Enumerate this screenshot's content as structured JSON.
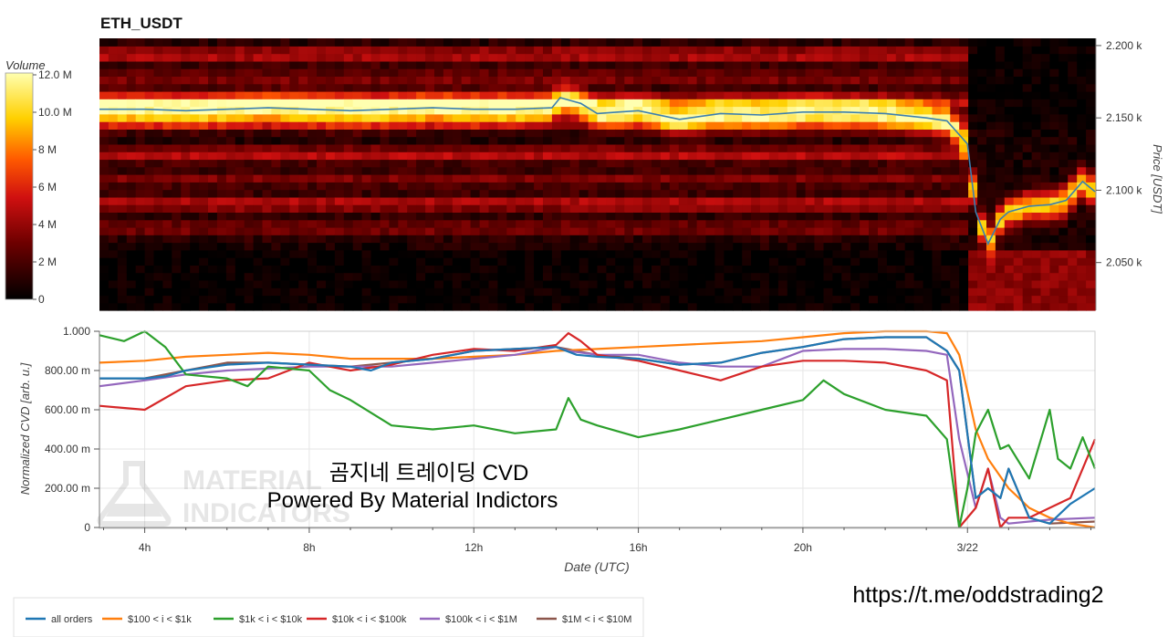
{
  "title": "ETH_USDT",
  "colorbar": {
    "label": "Volume",
    "ticks": [
      "12.0 M",
      "10.0 M",
      "8 M",
      "6 M",
      "4 M",
      "2 M",
      "0"
    ],
    "range": [
      0,
      12
    ]
  },
  "watermark": {
    "line1": "곰지네 트레이딩 CVD",
    "line2": "Powered By Material Indictors",
    "logo_text": [
      "MATERIAL",
      "INDICATORS"
    ]
  },
  "link_text": "https://t.me/oddstrading2",
  "colors": {
    "all_orders": "#1f77b4",
    "s100_1k": "#ff7f0e",
    "s1k_10k": "#2ca02c",
    "s10k_100k": "#d62728",
    "s100k_1m": "#9467bd",
    "s1m_10m": "#8c564b",
    "price_line": "#3b7fb0"
  },
  "chart_data": [
    {
      "type": "heatmap",
      "title": "ETH_USDT",
      "ylabel": "Price [USDT]",
      "yticks": [
        "2.200 k",
        "2.150 k",
        "2.100 k",
        "2.050 k"
      ],
      "yticks_values": [
        2200,
        2150,
        2100,
        2050
      ],
      "ylim": [
        2017,
        2205
      ],
      "xlim_hours": [
        2.9,
        27.1
      ],
      "price_series": {
        "name": "Price",
        "x_hours": [
          2.9,
          4,
          5,
          6,
          7,
          8,
          9,
          10,
          11,
          12,
          13,
          13.9,
          14.1,
          14.6,
          15,
          15.5,
          16,
          17,
          18,
          19,
          20,
          21,
          22,
          23,
          23.5,
          24.0,
          24.2,
          24.5,
          24.8,
          25,
          25.5,
          26,
          26.4,
          26.8,
          27.1
        ],
        "values": [
          2156,
          2156,
          2155,
          2156,
          2157,
          2156,
          2155,
          2156,
          2157,
          2156,
          2156,
          2157,
          2164,
          2160,
          2153,
          2154,
          2155,
          2149,
          2153,
          2152,
          2154,
          2154,
          2153,
          2150,
          2148,
          2132,
          2085,
          2063,
          2080,
          2085,
          2089,
          2090,
          2093,
          2106,
          2099
        ]
      }
    },
    {
      "type": "line",
      "title": "곰지네 트레이딩 CVD",
      "xlabel": "Date (UTC)",
      "ylabel": "Normalized CVD [arb. u.]",
      "ylim": [
        0,
        1.0
      ],
      "yticks": [
        "1.000",
        "800.00 m",
        "600.00 m",
        "400.00 m",
        "200.00 m",
        "0"
      ],
      "yticks_values": [
        1.0,
        0.8,
        0.6,
        0.4,
        0.2,
        0
      ],
      "xlim_hours": [
        2.9,
        27.1
      ],
      "xticks": [
        "4h",
        "8h",
        "12h",
        "16h",
        "20h",
        "3/22"
      ],
      "xticks_hours": [
        4,
        8,
        12,
        16,
        20,
        24
      ],
      "series": [
        {
          "key": "all_orders",
          "name": "all orders",
          "x_hours": [
            2.9,
            4,
            4.5,
            5,
            6,
            7,
            8,
            9,
            9.5,
            10,
            11,
            12,
            13,
            14,
            14.5,
            15,
            16,
            17,
            18,
            19,
            20,
            21,
            22,
            23,
            23.5,
            23.8,
            24.2,
            24.5,
            24.8,
            25,
            25.5,
            26,
            26.5,
            27.1
          ],
          "values": [
            0.76,
            0.76,
            0.77,
            0.8,
            0.83,
            0.84,
            0.83,
            0.82,
            0.8,
            0.84,
            0.86,
            0.9,
            0.91,
            0.92,
            0.88,
            0.87,
            0.86,
            0.83,
            0.84,
            0.89,
            0.92,
            0.96,
            0.97,
            0.97,
            0.9,
            0.8,
            0.15,
            0.2,
            0.15,
            0.3,
            0.05,
            0.02,
            0.12,
            0.2
          ]
        },
        {
          "key": "s100_1k",
          "name": "$100 < i < $1k",
          "x_hours": [
            2.9,
            4,
            5,
            6,
            7,
            8,
            9,
            10,
            11,
            12,
            13,
            14,
            15,
            16,
            17,
            18,
            19,
            20,
            21,
            22,
            23,
            23.5,
            23.8,
            24.2,
            24.5,
            25,
            25.5,
            26,
            26.5,
            27.1
          ],
          "values": [
            0.84,
            0.85,
            0.87,
            0.88,
            0.89,
            0.88,
            0.86,
            0.86,
            0.86,
            0.87,
            0.88,
            0.9,
            0.91,
            0.92,
            0.93,
            0.94,
            0.95,
            0.97,
            0.99,
            1.0,
            1.0,
            0.99,
            0.88,
            0.5,
            0.35,
            0.2,
            0.1,
            0.05,
            0.02,
            0.0
          ]
        },
        {
          "key": "s1k_10k",
          "name": "$1k < i < $10k",
          "x_hours": [
            2.9,
            3.5,
            4,
            4.5,
            5,
            6,
            6.5,
            7,
            8,
            8.5,
            9,
            10,
            11,
            12,
            13,
            14,
            14.3,
            14.6,
            15,
            16,
            17,
            18,
            19,
            20,
            20.5,
            21,
            22,
            23,
            23.5,
            23.8,
            24,
            24.2,
            24.5,
            24.8,
            25,
            25.5,
            26,
            26.2,
            26.5,
            26.8,
            27.1
          ],
          "values": [
            0.98,
            0.95,
            1.0,
            0.92,
            0.78,
            0.76,
            0.72,
            0.82,
            0.8,
            0.7,
            0.65,
            0.52,
            0.5,
            0.52,
            0.48,
            0.5,
            0.66,
            0.55,
            0.52,
            0.46,
            0.5,
            0.55,
            0.6,
            0.65,
            0.75,
            0.68,
            0.6,
            0.57,
            0.45,
            0.0,
            0.2,
            0.48,
            0.6,
            0.4,
            0.42,
            0.25,
            0.6,
            0.35,
            0.3,
            0.46,
            0.3
          ]
        },
        {
          "key": "s10k_100k",
          "name": "$10k < i < $100k",
          "x_hours": [
            2.9,
            4,
            5,
            6,
            7,
            8,
            9,
            10,
            11,
            12,
            13,
            14,
            14.3,
            14.6,
            15,
            16,
            17,
            18,
            19,
            20,
            21,
            22,
            23,
            23.5,
            23.8,
            24.2,
            24.5,
            24.8,
            25,
            25.5,
            26,
            26.5,
            27.1
          ],
          "values": [
            0.62,
            0.6,
            0.72,
            0.75,
            0.76,
            0.84,
            0.8,
            0.83,
            0.88,
            0.91,
            0.9,
            0.93,
            0.99,
            0.95,
            0.88,
            0.85,
            0.8,
            0.75,
            0.82,
            0.85,
            0.85,
            0.84,
            0.8,
            0.75,
            0.0,
            0.1,
            0.3,
            0.0,
            0.05,
            0.05,
            0.1,
            0.15,
            0.45
          ]
        },
        {
          "key": "s100k_1m",
          "name": "$100k < i < $1M",
          "x_hours": [
            2.9,
            4,
            5,
            6,
            7,
            8,
            9,
            10,
            11,
            12,
            13,
            14,
            14.3,
            15,
            16,
            17,
            18,
            19,
            20,
            21,
            22,
            23,
            23.5,
            23.8,
            24.2,
            24.5,
            24.8,
            25,
            25.5,
            26,
            27.1
          ],
          "values": [
            0.72,
            0.75,
            0.78,
            0.8,
            0.81,
            0.82,
            0.82,
            0.82,
            0.84,
            0.86,
            0.88,
            0.92,
            0.9,
            0.88,
            0.88,
            0.84,
            0.82,
            0.82,
            0.9,
            0.91,
            0.91,
            0.9,
            0.88,
            0.45,
            0.1,
            0.3,
            0.05,
            0.02,
            0.03,
            0.04,
            0.05
          ]
        },
        {
          "key": "s1m_10m",
          "name": "$1M < i < $10M",
          "x_hours": [
            2.9,
            4,
            5,
            6,
            7,
            8,
            9,
            10,
            11,
            12,
            13,
            14,
            15,
            16,
            17,
            18,
            19,
            20,
            21,
            22,
            23,
            23.5,
            23.8,
            24.2,
            24.5,
            24.8,
            25,
            25.5,
            26,
            27.1
          ],
          "values": [
            0.76,
            0.76,
            0.8,
            0.84,
            0.84,
            0.83,
            0.82,
            0.84,
            0.86,
            0.9,
            0.91,
            0.92,
            0.88,
            0.86,
            0.83,
            0.84,
            0.89,
            0.92,
            0.96,
            0.97,
            0.97,
            0.9,
            0.8,
            0.15,
            0.2,
            0.15,
            0.3,
            0.05,
            0.02,
            0.03
          ]
        }
      ]
    }
  ]
}
